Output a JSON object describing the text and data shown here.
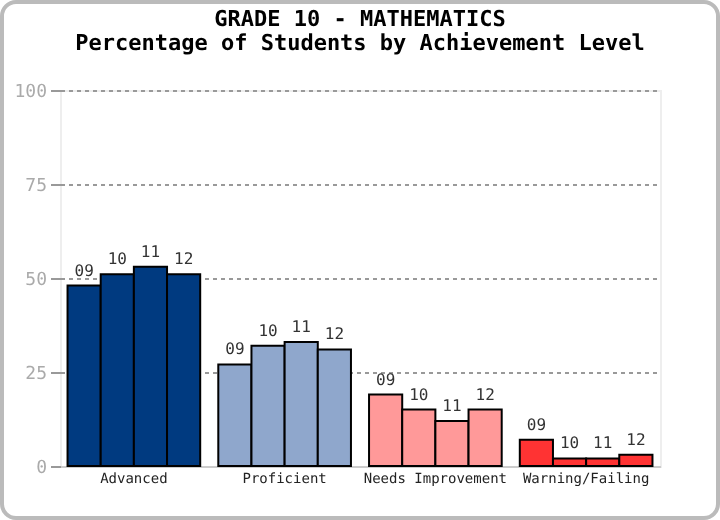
{
  "chart_data": {
    "type": "bar",
    "title": "GRADE 10 - MATHEMATICS",
    "subtitle": "Percentage of Students by Achievement Level",
    "categories": [
      "Advanced",
      "Proficient",
      "Needs Improvement",
      "Warning/Failing"
    ],
    "series": [
      {
        "name": "09",
        "colors": [
          "#003a80",
          "#8fa7cc",
          "#ff9999",
          "#ff3333"
        ],
        "values": [
          48,
          27,
          19,
          7
        ]
      },
      {
        "name": "10",
        "colors": [
          "#003a80",
          "#8fa7cc",
          "#ff9999",
          "#ff3333"
        ],
        "values": [
          51,
          32,
          15,
          2
        ]
      },
      {
        "name": "11",
        "colors": [
          "#003a80",
          "#8fa7cc",
          "#ff9999",
          "#ff3333"
        ],
        "values": [
          53,
          33,
          12,
          2
        ]
      },
      {
        "name": "12",
        "colors": [
          "#003a80",
          "#8fa7cc",
          "#ff9999",
          "#ff3333"
        ],
        "values": [
          51,
          31,
          15,
          3
        ]
      }
    ],
    "ylim": [
      0,
      100
    ],
    "yticks": [
      0,
      25,
      50,
      75,
      100
    ],
    "grid": "y"
  }
}
